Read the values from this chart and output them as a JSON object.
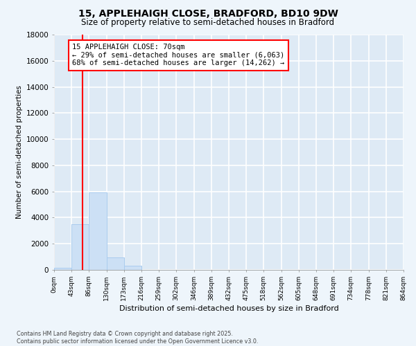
{
  "title": "15, APPLEHAIGH CLOSE, BRADFORD, BD10 9DW",
  "subtitle": "Size of property relative to semi-detached houses in Bradford",
  "xlabel": "Distribution of semi-detached houses by size in Bradford",
  "ylabel": "Number of semi-detached properties",
  "bar_color": "#cce0f5",
  "bar_edge_color": "#aaccee",
  "vline_color": "red",
  "vline_position": 70,
  "annotation_title": "15 APPLEHAIGH CLOSE: 70sqm",
  "annotation_line1": "← 29% of semi-detached houses are smaller (6,063)",
  "annotation_line2": "68% of semi-detached houses are larger (14,262) →",
  "annotation_box_color": "white",
  "annotation_box_edge": "red",
  "footer_line1": "Contains HM Land Registry data © Crown copyright and database right 2025.",
  "footer_line2": "Contains public sector information licensed under the Open Government Licence v3.0.",
  "ylim": [
    0,
    18000
  ],
  "yticks": [
    0,
    2000,
    4000,
    6000,
    8000,
    10000,
    12000,
    14000,
    16000,
    18000
  ],
  "bin_edges": [
    0,
    43,
    86,
    130,
    173,
    216,
    259,
    302,
    346,
    389,
    432,
    475,
    518,
    562,
    605,
    648,
    691,
    734,
    778,
    821,
    864
  ],
  "bin_labels": [
    "0sqm",
    "43sqm",
    "86sqm",
    "130sqm",
    "173sqm",
    "216sqm",
    "259sqm",
    "302sqm",
    "346sqm",
    "389sqm",
    "432sqm",
    "475sqm",
    "518sqm",
    "562sqm",
    "605sqm",
    "648sqm",
    "691sqm",
    "734sqm",
    "778sqm",
    "821sqm",
    "864sqm"
  ],
  "bar_heights": [
    150,
    3500,
    5950,
    950,
    330,
    0,
    0,
    0,
    0,
    0,
    0,
    0,
    0,
    0,
    0,
    0,
    0,
    0,
    0,
    0
  ],
  "background_color": "#eef5fb",
  "grid_color": "white",
  "plot_bg_color": "#deeaf5"
}
